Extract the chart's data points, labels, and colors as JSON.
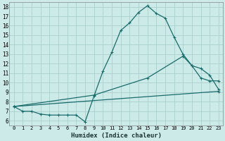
{
  "xlabel": "Humidex (Indice chaleur)",
  "ylabel": "",
  "xlim": [
    -0.5,
    23.5
  ],
  "ylim": [
    5.5,
    18.5
  ],
  "yticks": [
    6,
    7,
    8,
    9,
    10,
    11,
    12,
    13,
    14,
    15,
    16,
    17,
    18
  ],
  "xticks": [
    0,
    1,
    2,
    3,
    4,
    5,
    6,
    7,
    8,
    9,
    10,
    11,
    12,
    13,
    14,
    15,
    16,
    17,
    18,
    19,
    20,
    21,
    22,
    23
  ],
  "bg_color": "#cceae8",
  "grid_color": "#aacfcc",
  "line_color": "#1a6b6b",
  "line1_x": [
    0,
    1,
    2,
    3,
    4,
    5,
    6,
    7,
    8,
    9,
    10,
    11,
    12,
    13,
    14,
    15,
    16,
    17,
    18,
    19,
    20,
    21,
    22,
    23
  ],
  "line1_y": [
    7.5,
    7.0,
    7.0,
    6.7,
    6.6,
    6.6,
    6.6,
    6.6,
    5.9,
    8.6,
    11.2,
    13.2,
    15.5,
    16.3,
    17.4,
    18.1,
    17.3,
    16.8,
    14.8,
    13.0,
    11.8,
    10.5,
    10.2,
    10.2
  ],
  "line2_x": [
    0,
    9,
    15,
    19,
    20,
    21,
    22,
    23
  ],
  "line2_y": [
    7.5,
    8.7,
    10.5,
    12.8,
    11.8,
    11.5,
    10.8,
    9.3
  ],
  "line3_x": [
    0,
    23
  ],
  "line3_y": [
    7.5,
    9.1
  ]
}
